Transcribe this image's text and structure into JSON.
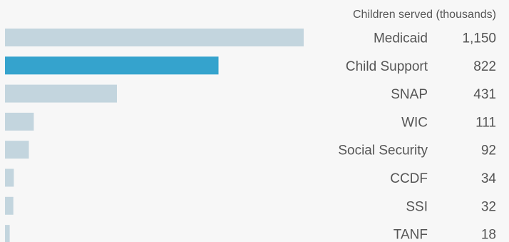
{
  "chart_data": {
    "type": "bar",
    "orientation": "horizontal",
    "value_header": "Children served (thousands)",
    "categories": [
      "Medicaid",
      "Child Support",
      "SNAP",
      "WIC",
      "Social Security",
      "CCDF",
      "SSI",
      "TANF"
    ],
    "values": [
      1150,
      822,
      431,
      111,
      92,
      34,
      32,
      18
    ],
    "value_labels": [
      "1,150",
      "822",
      "431",
      "111",
      "92",
      "34",
      "32",
      "18"
    ],
    "highlight": "Child Support",
    "colors": {
      "bar": "#c3d5de",
      "highlight": "#35a3cd",
      "text": "#555555",
      "background": "#f7f7f7"
    }
  }
}
